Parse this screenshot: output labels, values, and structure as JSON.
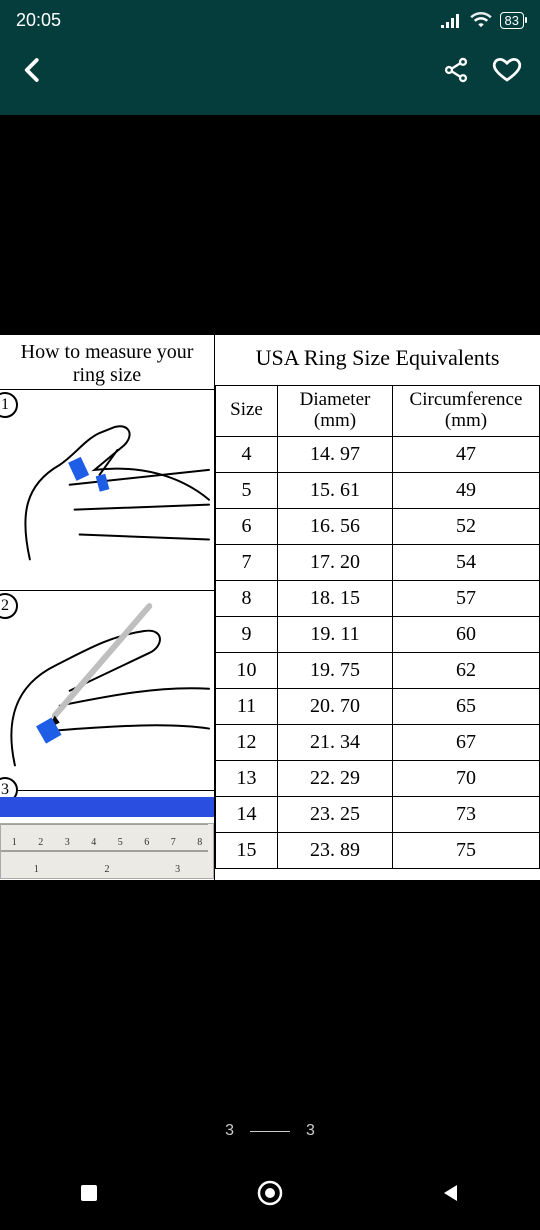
{
  "status": {
    "time": "20:05",
    "battery": "83"
  },
  "pager": {
    "current": "3",
    "total": "3"
  },
  "image": {
    "how_title_line1": "How to measure your",
    "how_title_line2": "ring size",
    "usa_title": "USA Ring Size Equivalents",
    "col_size": "Size",
    "col_diameter": "Diameter",
    "col_diameter_unit": "(mm)",
    "col_circ": "Circumference",
    "col_circ_unit": "(mm)",
    "rows": [
      {
        "size": "4",
        "diameter": "14. 97",
        "circ": "47"
      },
      {
        "size": "5",
        "diameter": "15. 61",
        "circ": "49"
      },
      {
        "size": "6",
        "diameter": "16. 56",
        "circ": "52"
      },
      {
        "size": "7",
        "diameter": "17. 20",
        "circ": "54"
      },
      {
        "size": "8",
        "diameter": "18. 15",
        "circ": "57"
      },
      {
        "size": "9",
        "diameter": "19. 11",
        "circ": "60"
      },
      {
        "size": "10",
        "diameter": "19. 75",
        "circ": "62"
      },
      {
        "size": "11",
        "diameter": "20. 70",
        "circ": "65"
      },
      {
        "size": "12",
        "diameter": "21. 34",
        "circ": "67"
      },
      {
        "size": "13",
        "diameter": "22. 29",
        "circ": "70"
      },
      {
        "size": "14",
        "diameter": "23. 25",
        "circ": "73"
      },
      {
        "size": "15",
        "diameter": "23. 89",
        "circ": "75"
      }
    ],
    "step1": "1",
    "step2": "2",
    "step3": "3",
    "ruler_top_nums": [
      "1",
      "2",
      "3",
      "4",
      "5",
      "6",
      "7",
      "8"
    ],
    "ruler_bottom_nums": [
      "1",
      "2",
      "3"
    ],
    "colors": {
      "header_bg": "#053d3d",
      "blue_strip": "#2a4fe0",
      "tape_blue": "#1e5de6"
    }
  }
}
